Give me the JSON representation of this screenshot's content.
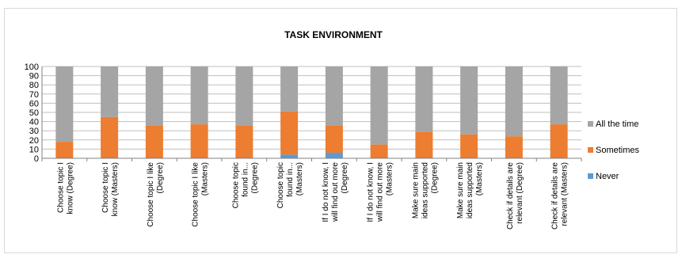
{
  "chart_data": {
    "type": "bar",
    "stacked": true,
    "title": "TASK ENVIRONMENT",
    "xlabel": "",
    "ylabel": "",
    "ylim": [
      0,
      100
    ],
    "yticks": [
      0,
      10,
      20,
      30,
      40,
      50,
      60,
      70,
      80,
      90,
      100
    ],
    "grid": true,
    "legend_position": "right",
    "categories": [
      [
        "Choose topic I",
        "know (Degree)"
      ],
      [
        "Choose topic I",
        "know (Masters)"
      ],
      [
        "Choose topic I like",
        "(Degree)"
      ],
      [
        "Choose topic I like",
        "(Masters)"
      ],
      [
        "Choose topic",
        "found in...",
        "(Degree)"
      ],
      [
        "Choose topic",
        "found in...",
        "(Masters)"
      ],
      [
        "If I do not know, I",
        "will find out more",
        "(Degree)"
      ],
      [
        "If I do not know, I",
        "will find out more",
        "(Masters)"
      ],
      [
        "Make sure main",
        "ideas supported",
        "(Degree)"
      ],
      [
        "Make sure main",
        "ideas supported",
        "(Masters)"
      ],
      [
        "Check if details are",
        "relevant (Degree)"
      ],
      [
        "Check if details are",
        "relevant (Masters)"
      ]
    ],
    "series": [
      {
        "name": "Never",
        "color": "#5b9bd5",
        "values": [
          0,
          0,
          0,
          0,
          0,
          4,
          6,
          0,
          0,
          0,
          0,
          0
        ]
      },
      {
        "name": "Sometimes",
        "color": "#ed7d31",
        "values": [
          18,
          45,
          36,
          37,
          36,
          47,
          30,
          15,
          29,
          26,
          24,
          37
        ]
      },
      {
        "name": "All the time",
        "color": "#a5a5a5",
        "values": [
          82,
          55,
          64,
          63,
          64,
          49,
          64,
          85,
          71,
          74,
          76,
          63
        ]
      }
    ],
    "legend_order": [
      "All the time",
      "Sometimes",
      "Never"
    ]
  }
}
